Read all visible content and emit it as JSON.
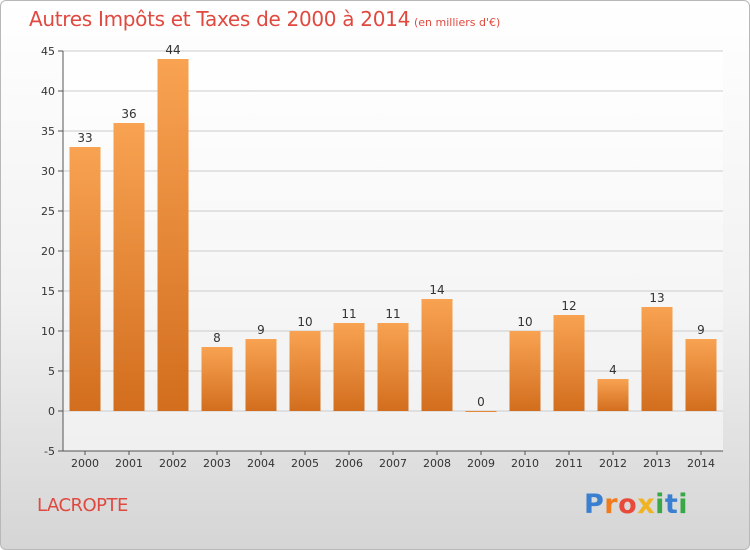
{
  "title": "Autres Impôts et Taxes de 2000 à 2014",
  "subtitle": "(en milliers d'€)",
  "commune": "LACROPTE",
  "logo_text": "Proxiti",
  "colors": {
    "title": "#e0493f",
    "bar_light": "#f8a352",
    "bar_dark": "#d26e1e",
    "grid": "#cccccc"
  },
  "chart_data": {
    "type": "bar",
    "title": "Autres Impôts et Taxes de 2000 à 2014",
    "subtitle": "(en milliers d'€)",
    "categories": [
      "2000",
      "2001",
      "2002",
      "2003",
      "2004",
      "2005",
      "2006",
      "2007",
      "2008",
      "2009",
      "2010",
      "2011",
      "2012",
      "2013",
      "2014"
    ],
    "values": [
      33,
      36,
      44,
      8,
      9,
      10,
      11,
      11,
      14,
      0,
      10,
      12,
      4,
      13,
      9
    ],
    "ylim": [
      -5,
      45
    ],
    "yticks": [
      -5,
      0,
      5,
      10,
      15,
      20,
      25,
      30,
      35,
      40,
      45
    ],
    "grid": "horizontal",
    "data_labels": true
  }
}
